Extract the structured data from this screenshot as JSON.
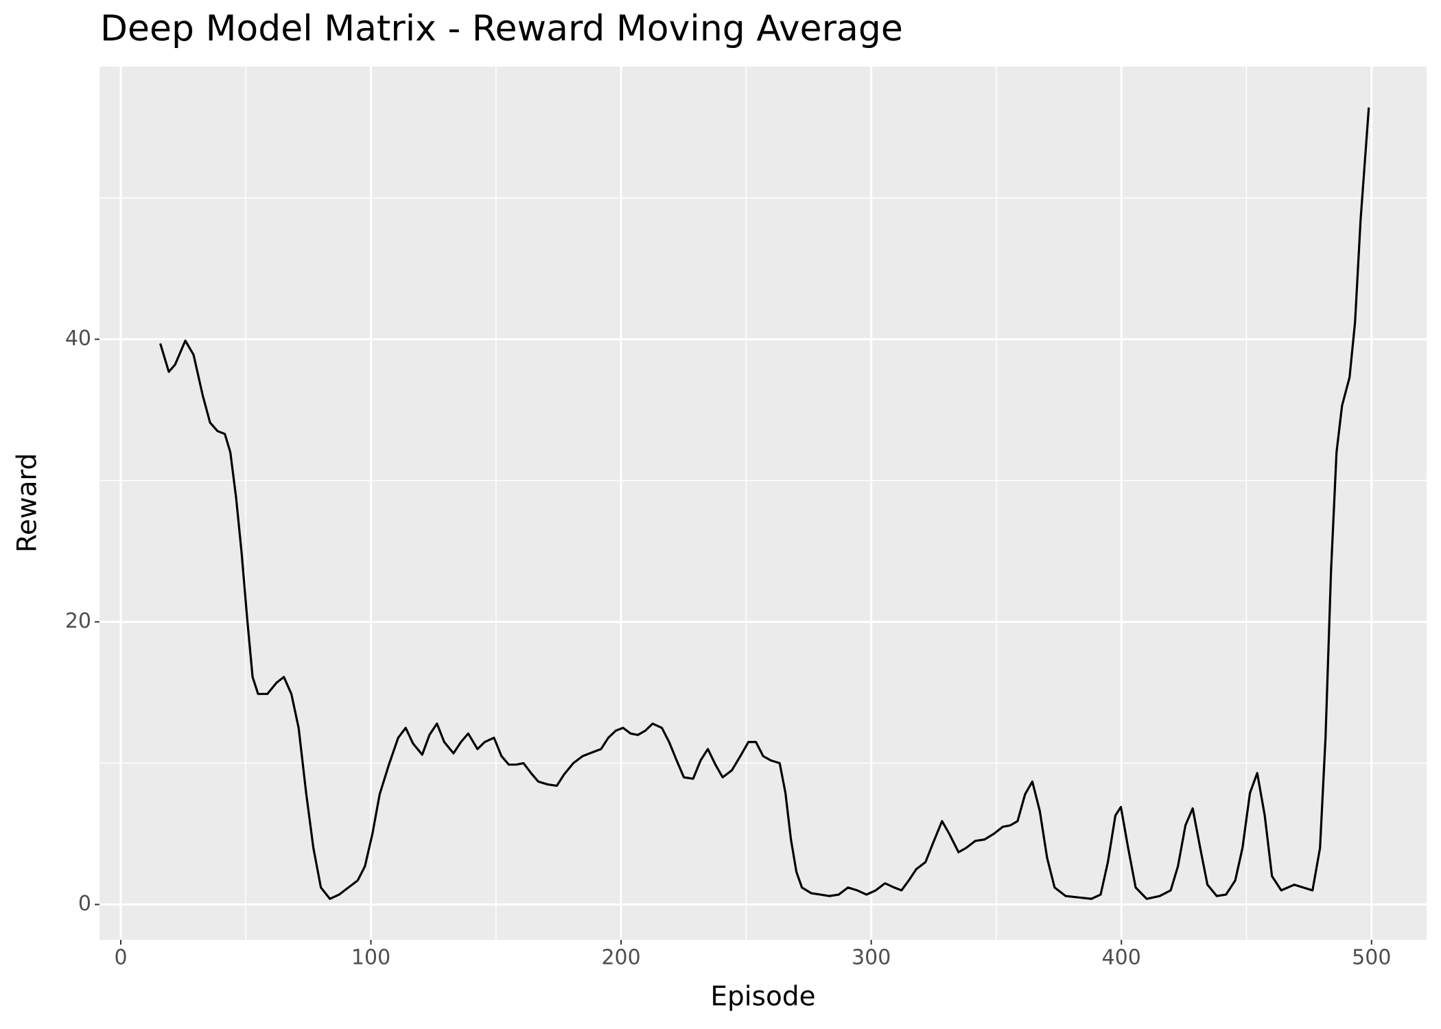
{
  "chart_data": {
    "type": "line",
    "title": "Deep Model Matrix - Reward Moving Average",
    "x_label": "Episode",
    "y_label": "Reward",
    "x": [
      15.8,
      19.2,
      21.7,
      25.8,
      29.1,
      32.8,
      35.7,
      38.7,
      41.6,
      43.8,
      46.1,
      48.3,
      50.5,
      52.7,
      54.9,
      58.6,
      62.3,
      65.2,
      68.2,
      71.1,
      74.1,
      77.0,
      80.0,
      83.6,
      87.3,
      91.0,
      94.7,
      97.6,
      100.6,
      103.5,
      107.2,
      110.9,
      113.9,
      116.8,
      120.5,
      123.4,
      126.4,
      129.3,
      133.0,
      136.0,
      138.9,
      142.6,
      145.5,
      149.2,
      152.2,
      155.1,
      158.1,
      161.0,
      164.0,
      166.9,
      170.6,
      174.3,
      177.2,
      180.9,
      184.6,
      187.5,
      192.0,
      194.9,
      197.9,
      200.8,
      203.8,
      206.7,
      209.7,
      212.6,
      216.3,
      219.2,
      222.2,
      225.1,
      228.8,
      231.8,
      234.7,
      237.7,
      240.6,
      244.3,
      248.0,
      250.9,
      253.9,
      256.8,
      259.8,
      263.4,
      265.7,
      267.9,
      270.1,
      272.3,
      276.0,
      279.7,
      283.3,
      287.0,
      290.7,
      294.4,
      298.1,
      301.8,
      305.5,
      309.2,
      312.1,
      315.0,
      318.0,
      321.7,
      324.6,
      328.3,
      331.2,
      334.9,
      337.9,
      341.6,
      345.3,
      349.0,
      352.6,
      355.6,
      358.5,
      361.5,
      364.4,
      367.4,
      370.3,
      373.3,
      377.7,
      382.8,
      388.0,
      391.7,
      394.6,
      397.6,
      399.8,
      402.7,
      405.7,
      410.1,
      415.3,
      419.7,
      422.6,
      425.6,
      428.5,
      431.5,
      434.4,
      438.1,
      441.8,
      445.5,
      448.4,
      451.4,
      454.3,
      457.3,
      460.2,
      463.9,
      469.1,
      472.7,
      476.4,
      479.4,
      481.6,
      483.8,
      486.0,
      488.2,
      491.2,
      493.4,
      495.6,
      498.9
    ],
    "series": [
      {
        "color": "#000000",
        "values": [
          39.7,
          37.7,
          38.2,
          39.9,
          38.9,
          36.0,
          34.1,
          33.5,
          33.3,
          32.0,
          28.8,
          24.9,
          20.3,
          16.1,
          14.9,
          14.9,
          15.7,
          16.1,
          14.9,
          12.5,
          7.9,
          4.0,
          1.2,
          0.4,
          0.7,
          1.2,
          1.7,
          2.7,
          5.0,
          7.8,
          9.9,
          11.8,
          12.5,
          11.4,
          10.6,
          12.0,
          12.8,
          11.5,
          10.7,
          11.5,
          12.1,
          11.0,
          11.5,
          11.8,
          10.5,
          9.9,
          9.9,
          10.0,
          9.3,
          8.7,
          8.5,
          8.4,
          9.2,
          10.0,
          10.5,
          10.7,
          11.0,
          11.8,
          12.3,
          12.5,
          12.1,
          12.0,
          12.3,
          12.8,
          12.5,
          11.5,
          10.2,
          9.0,
          8.9,
          10.2,
          11.0,
          9.9,
          9.0,
          9.5,
          10.6,
          11.5,
          11.5,
          10.5,
          10.2,
          10.0,
          7.9,
          4.6,
          2.3,
          1.2,
          0.8,
          0.7,
          0.6,
          0.7,
          1.2,
          1.0,
          0.7,
          1.0,
          1.5,
          1.2,
          1.0,
          1.7,
          2.5,
          3.0,
          4.3,
          5.9,
          5.0,
          3.7,
          4.0,
          4.5,
          4.6,
          5.0,
          5.5,
          5.6,
          5.9,
          7.8,
          8.7,
          6.6,
          3.3,
          1.2,
          0.6,
          0.5,
          0.4,
          0.7,
          3.0,
          6.3,
          6.9,
          4.0,
          1.2,
          0.4,
          0.6,
          1.0,
          2.7,
          5.6,
          6.8,
          4.0,
          1.4,
          0.6,
          0.7,
          1.7,
          4.0,
          7.9,
          9.3,
          6.3,
          2.0,
          1.0,
          1.4,
          1.2,
          1.0,
          4.0,
          11.8,
          23.6,
          32.0,
          35.3,
          37.3,
          41.2,
          48.4,
          56.4
        ]
      }
    ],
    "xlim": [
      -8.5,
      522
    ],
    "ylim": [
      -2.5,
      59.3
    ],
    "xticks": [
      0,
      100,
      200,
      300,
      400,
      500
    ],
    "yticks": [
      0,
      20,
      40
    ],
    "xminor": [
      50,
      150,
      250,
      350,
      450
    ],
    "yminor": [
      10,
      30,
      50
    ],
    "grid": true
  }
}
